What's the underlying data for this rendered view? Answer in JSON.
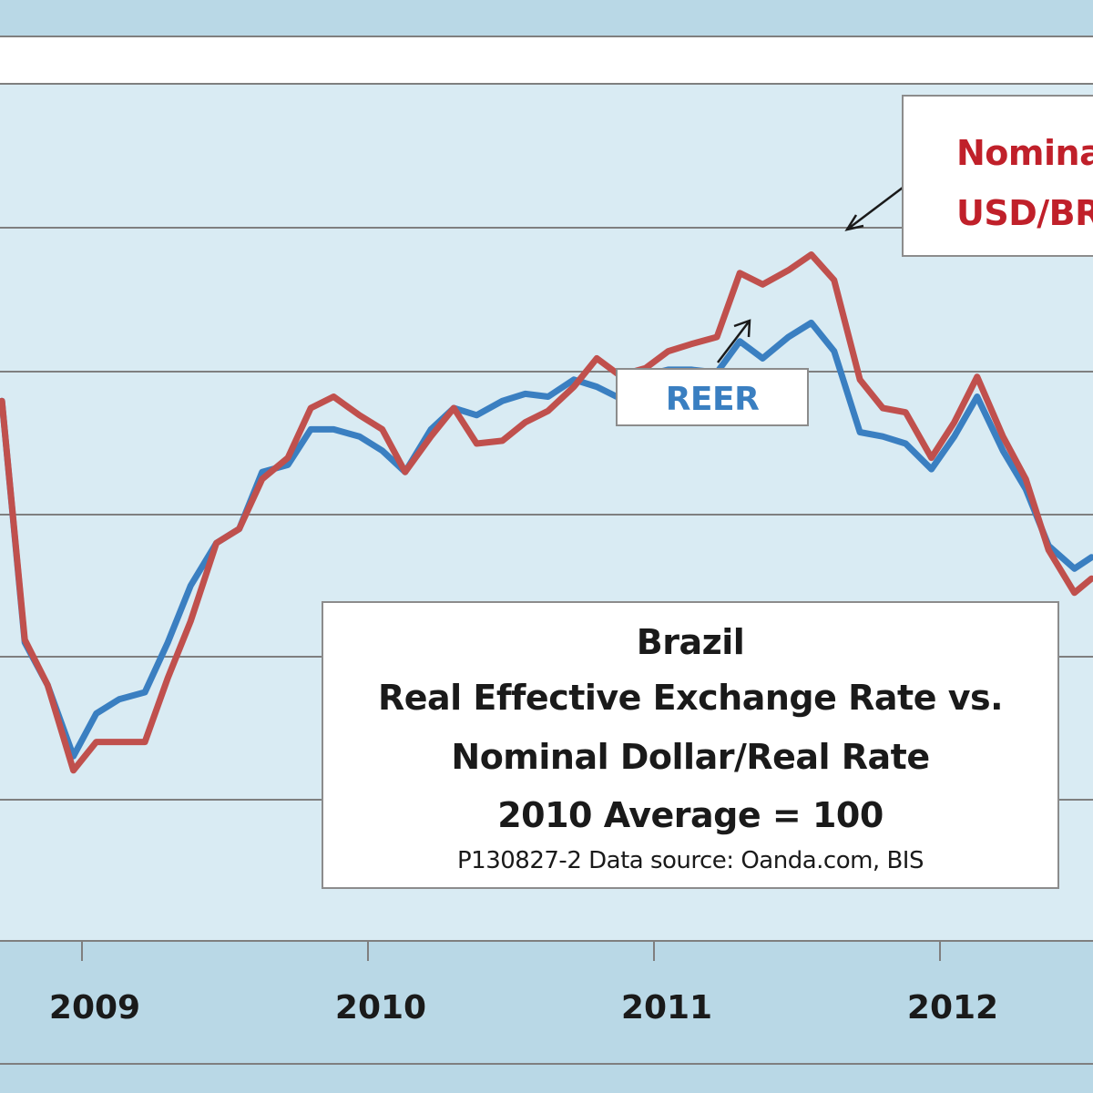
{
  "chart_data": {
    "type": "line",
    "title": "Brazil",
    "subtitle_lines": [
      "Real Effective Exchange Rate vs.",
      "Nominal Dollar/Real Rate",
      "2010  Average = 100"
    ],
    "source_note": "P130827-2 Data source: Oanda.com, BIS",
    "x_tick_labels": [
      "2009",
      "2010",
      "2011",
      "2012"
    ],
    "x_tick_years": [
      2009,
      2010,
      2011,
      2012
    ],
    "x_range": [
      2008.72,
      2012.53
    ],
    "grid": "horizontal",
    "series": [
      {
        "name": "REER",
        "color": "#3a7fc1",
        "points": [
          [
            2008.72,
            108
          ],
          [
            2008.8,
            91
          ],
          [
            2008.88,
            88
          ],
          [
            2008.97,
            83
          ],
          [
            2009.05,
            86
          ],
          [
            2009.13,
            87
          ],
          [
            2009.22,
            87.5
          ],
          [
            2009.3,
            91
          ],
          [
            2009.38,
            95
          ],
          [
            2009.47,
            98
          ],
          [
            2009.55,
            99
          ],
          [
            2009.63,
            103
          ],
          [
            2009.72,
            103.5
          ],
          [
            2009.8,
            106
          ],
          [
            2009.88,
            106
          ],
          [
            2009.97,
            105.5
          ],
          [
            2010.05,
            104.5
          ],
          [
            2010.13,
            103
          ],
          [
            2010.22,
            106
          ],
          [
            2010.3,
            107.5
          ],
          [
            2010.38,
            107
          ],
          [
            2010.47,
            108
          ],
          [
            2010.55,
            108.5
          ],
          [
            2010.63,
            108.3
          ],
          [
            2010.72,
            109.5
          ],
          [
            2010.8,
            109
          ],
          [
            2010.88,
            108.2
          ],
          [
            2010.97,
            109.8
          ],
          [
            2011.05,
            110.2
          ],
          [
            2011.13,
            110.2
          ],
          [
            2011.22,
            110
          ],
          [
            2011.3,
            112.2
          ],
          [
            2011.38,
            111
          ],
          [
            2011.47,
            112.5
          ],
          [
            2011.55,
            113.5
          ],
          [
            2011.63,
            111.5
          ],
          [
            2011.72,
            105.8
          ],
          [
            2011.8,
            105.5
          ],
          [
            2011.88,
            105
          ],
          [
            2011.97,
            103.2
          ],
          [
            2012.05,
            105.5
          ],
          [
            2012.13,
            108.3
          ],
          [
            2012.22,
            104.5
          ],
          [
            2012.3,
            101.8
          ],
          [
            2012.38,
            97.8
          ],
          [
            2012.47,
            96.2
          ],
          [
            2012.53,
            97
          ]
        ]
      },
      {
        "name": "Nominal USD/BRL",
        "color": "#c0504d",
        "points": [
          [
            2008.72,
            108
          ],
          [
            2008.8,
            91.2
          ],
          [
            2008.88,
            88
          ],
          [
            2008.97,
            82
          ],
          [
            2009.05,
            84
          ],
          [
            2009.13,
            84
          ],
          [
            2009.22,
            84
          ],
          [
            2009.3,
            88.5
          ],
          [
            2009.38,
            92.5
          ],
          [
            2009.47,
            98
          ],
          [
            2009.55,
            99
          ],
          [
            2009.63,
            102.5
          ],
          [
            2009.72,
            104
          ],
          [
            2009.8,
            107.5
          ],
          [
            2009.88,
            108.3
          ],
          [
            2009.97,
            107
          ],
          [
            2010.05,
            106
          ],
          [
            2010.13,
            103
          ],
          [
            2010.22,
            105.5
          ],
          [
            2010.3,
            107.5
          ],
          [
            2010.38,
            105
          ],
          [
            2010.47,
            105.2
          ],
          [
            2010.55,
            106.5
          ],
          [
            2010.63,
            107.3
          ],
          [
            2010.72,
            109
          ],
          [
            2010.8,
            111
          ],
          [
            2010.88,
            109.8
          ],
          [
            2010.97,
            110.3
          ],
          [
            2011.05,
            111.5
          ],
          [
            2011.13,
            112
          ],
          [
            2011.22,
            112.5
          ],
          [
            2011.3,
            117
          ],
          [
            2011.38,
            116.2
          ],
          [
            2011.47,
            117.2
          ],
          [
            2011.55,
            118.3
          ],
          [
            2011.63,
            116.5
          ],
          [
            2011.72,
            109.5
          ],
          [
            2011.8,
            107.5
          ],
          [
            2011.88,
            107.2
          ],
          [
            2011.97,
            104
          ],
          [
            2012.05,
            106.5
          ],
          [
            2012.13,
            109.7
          ],
          [
            2012.22,
            105.5
          ],
          [
            2012.3,
            102.5
          ],
          [
            2012.38,
            97.5
          ],
          [
            2012.47,
            94.5
          ],
          [
            2012.53,
            95.5
          ]
        ]
      }
    ]
  },
  "labels": {
    "nominal_line1": "Nominal",
    "nominal_line2": "USD/BRL",
    "reer": "REER"
  }
}
